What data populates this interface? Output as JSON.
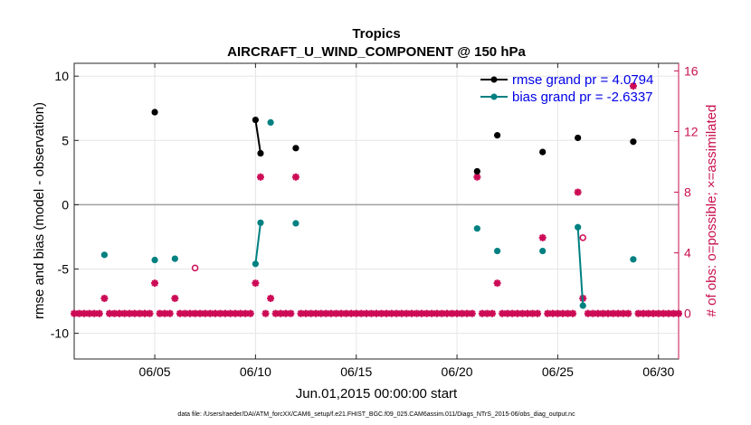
{
  "chart_data": {
    "type": "scatter",
    "title": "Tropics",
    "subtitle": "AIRCRAFT_U_WIND_COMPONENT @ 150 hPa",
    "xlabel": "Jun.01,2015 00:00:00 start",
    "ylabel": "rmse and bias (model - observation)",
    "ylabel_right": "# of obs: o=possible; ×=assimilated",
    "xlim": [
      1,
      31
    ],
    "ylim": [
      -12,
      11
    ],
    "ylim_right": [
      -3,
      16.5
    ],
    "x_ticks": [
      5,
      10,
      15,
      20,
      25,
      30
    ],
    "x_tick_labels": [
      "06/05",
      "06/10",
      "06/15",
      "06/20",
      "06/25",
      "06/30"
    ],
    "y_ticks": [
      10,
      5,
      0,
      -5,
      -10
    ],
    "y_tick_labels": [
      "10",
      "5",
      "0",
      "-5",
      "-10"
    ],
    "y_ticks_right": [
      16,
      12,
      8,
      4,
      0
    ],
    "y_tick_labels_right": [
      "16",
      "12",
      "8",
      "4",
      "0"
    ],
    "grid": true,
    "zero_line": 0,
    "legend_position": "top-right",
    "colors": {
      "rmse": "#000000",
      "bias": "#008080",
      "obs": "#cc0a55",
      "zero_line": "#a0a0a0"
    },
    "series": [
      {
        "name": "rmse grand pr = 4.0794",
        "points": [
          [
            5.0,
            7.2
          ],
          [
            10.0,
            6.6
          ],
          [
            10.25,
            4.0
          ],
          [
            12.0,
            4.4
          ],
          [
            21.0,
            2.6
          ],
          [
            22.0,
            5.4
          ],
          [
            24.25,
            4.1
          ],
          [
            26.0,
            5.2
          ],
          [
            28.75,
            4.9
          ]
        ],
        "line_segments": [
          [
            1,
            2
          ]
        ]
      },
      {
        "name": "bias grand pr = -2.6337",
        "points": [
          [
            2.5,
            -3.9
          ],
          [
            5.0,
            -4.3
          ],
          [
            6.0,
            -4.2
          ],
          [
            10.0,
            -4.6
          ],
          [
            10.25,
            -1.4
          ],
          [
            10.75,
            6.4
          ],
          [
            12.0,
            -1.45
          ],
          [
            21.0,
            -1.85
          ],
          [
            22.0,
            -3.6
          ],
          [
            24.25,
            -3.6
          ],
          [
            26.0,
            -1.75
          ],
          [
            26.25,
            -7.85
          ],
          [
            28.75,
            -4.25
          ]
        ],
        "line_segments": [
          [
            3,
            4
          ],
          [
            10,
            11
          ]
        ]
      }
    ],
    "obs_used": [
      [
        2.5,
        1
      ],
      [
        5.0,
        2
      ],
      [
        6.0,
        1
      ],
      [
        10.0,
        2
      ],
      [
        10.25,
        9
      ],
      [
        10.75,
        1
      ],
      [
        12.0,
        9
      ],
      [
        21.0,
        9
      ],
      [
        22.0,
        2
      ],
      [
        24.25,
        5
      ],
      [
        26.0,
        8
      ],
      [
        26.25,
        1
      ],
      [
        28.75,
        15
      ]
    ],
    "obs_possible": [
      [
        7.0,
        3
      ],
      [
        26.25,
        5
      ]
    ],
    "zero_obs_x": [
      1.0,
      1.25,
      1.5,
      1.75,
      2.0,
      2.25,
      2.75,
      3.0,
      3.25,
      3.5,
      3.75,
      4.0,
      4.25,
      4.5,
      4.75,
      5.25,
      5.5,
      5.75,
      6.25,
      6.5,
      6.75,
      7.0,
      7.25,
      7.5,
      7.75,
      8.0,
      8.25,
      8.5,
      8.75,
      9.0,
      9.25,
      9.5,
      9.75,
      10.5,
      11.0,
      11.25,
      11.5,
      11.75,
      12.25,
      12.5,
      12.75,
      13.0,
      13.25,
      13.5,
      13.75,
      14.0,
      14.25,
      14.5,
      14.75,
      15.0,
      15.25,
      15.5,
      15.75,
      16.0,
      16.25,
      16.5,
      16.75,
      17.0,
      17.25,
      17.5,
      17.75,
      18.0,
      18.25,
      18.5,
      18.75,
      19.0,
      19.25,
      19.5,
      19.75,
      20.0,
      20.25,
      20.5,
      20.75,
      21.25,
      21.5,
      21.75,
      22.25,
      22.5,
      22.75,
      23.0,
      23.25,
      23.5,
      23.75,
      24.0,
      24.5,
      24.75,
      25.0,
      25.25,
      25.5,
      25.75,
      26.5,
      26.75,
      27.0,
      27.25,
      27.5,
      27.75,
      28.0,
      28.25,
      28.5,
      29.0,
      29.25,
      29.5,
      29.75,
      30.0,
      30.25,
      30.5,
      30.75,
      31.0
    ]
  },
  "footer": "data file: /Users/raeder/DAI/ATM_forcXX/CAM6_setup/f.e21.FHIST_BGC.f09_025.CAM6assim.011/Diags_NTrS_2015-06/obs_diag_output.nc"
}
